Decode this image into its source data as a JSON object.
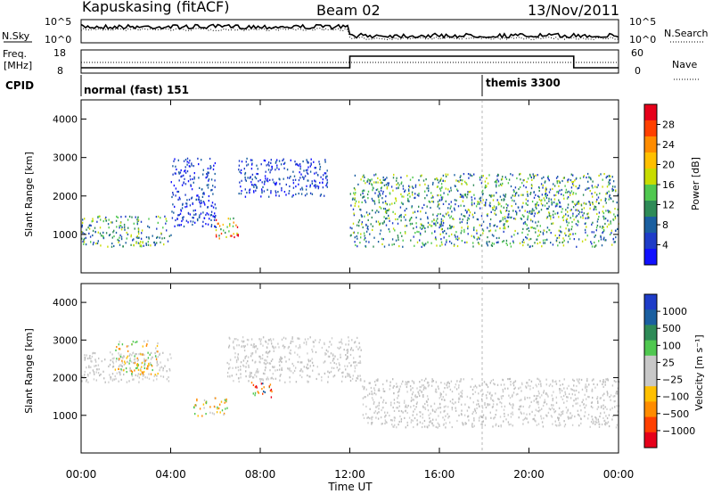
{
  "header": {
    "station": "Kapuskasing (fitACF)",
    "beam": "Beam 02",
    "date": "13/Nov/2011"
  },
  "noise_panel": {
    "left_label": "N.Sky",
    "right_label": "N.Search",
    "ticks": [
      "10^5",
      "10^0"
    ]
  },
  "freq_panel": {
    "left_label_line1": "Freq.",
    "left_label_line2": "[MHz]",
    "left_ticks": [
      "18",
      "8"
    ],
    "right_label": "Nave",
    "right_ticks": [
      "60",
      "0"
    ]
  },
  "cpid": {
    "label": "CPID",
    "modes": [
      {
        "start": "00:00",
        "name": "normal (fast) 151"
      },
      {
        "start": "18:00",
        "name": "themis 3300"
      }
    ]
  },
  "chart_data": [
    {
      "type": "heatmap",
      "name": "power",
      "ylabel": "Slant Range [km]",
      "xlabel": "",
      "ylim": [
        0,
        4500
      ],
      "yticks": [
        1000,
        2000,
        3000,
        4000
      ],
      "colorbar": {
        "label": "Power [dB]",
        "ticks": [
          "28",
          "24",
          "20",
          "16",
          "12",
          "8",
          "4"
        ],
        "colors": [
          "#e6001a",
          "#ff4000",
          "#ff8c00",
          "#ffc000",
          "#c8dc00",
          "#50c850",
          "#2e8b57",
          "#1a5fa0",
          "#1e3cc8",
          "#1010ff"
        ]
      },
      "echo_regions": [
        {
          "t_start": "00:00",
          "t_end": "04:00",
          "range_min": 700,
          "range_max": 1500,
          "level": "medium"
        },
        {
          "t_start": "04:00",
          "t_end": "06:00",
          "range_min": 1200,
          "range_max": 3000,
          "level": "low"
        },
        {
          "t_start": "06:00",
          "t_end": "07:00",
          "range_min": 900,
          "range_max": 1500,
          "level": "high"
        },
        {
          "t_start": "07:00",
          "t_end": "11:00",
          "range_min": 2000,
          "range_max": 3000,
          "level": "low"
        },
        {
          "t_start": "12:00",
          "t_end": "24:00",
          "range_min": 700,
          "range_max": 2600,
          "level": "medium"
        }
      ]
    },
    {
      "type": "heatmap",
      "name": "velocity",
      "ylabel": "Slant Range [km]",
      "xlabel": "Time UT",
      "ylim": [
        0,
        4500
      ],
      "yticks": [
        1000,
        2000,
        3000,
        4000
      ],
      "xticks": [
        "00:00",
        "04:00",
        "08:00",
        "12:00",
        "16:00",
        "20:00",
        "00:00"
      ],
      "colorbar": {
        "label": "Velocity [m s⁻¹]",
        "ticks": [
          "1000",
          "500",
          "100",
          "25",
          "−25",
          "−100",
          "−500",
          "−1000"
        ],
        "colors": [
          "#1e3cc8",
          "#1a5fa0",
          "#2e8b57",
          "#50c850",
          "#c8c8c8",
          "#c8c8c8",
          "#ffc000",
          "#ff8c00",
          "#ff4000",
          "#e6001a"
        ]
      },
      "echo_regions": [
        {
          "t_start": "00:00",
          "t_end": "04:00",
          "range_min": 1900,
          "range_max": 2700,
          "velocity": "ground-scatter"
        },
        {
          "t_start": "01:30",
          "t_end": "03:30",
          "range_min": 2100,
          "range_max": 3000,
          "velocity": -300
        },
        {
          "t_start": "05:00",
          "t_end": "06:30",
          "range_min": 1000,
          "range_max": 1500,
          "velocity": -100
        },
        {
          "t_start": "07:30",
          "t_end": "08:30",
          "range_min": 1500,
          "range_max": 1900,
          "velocity": -800
        },
        {
          "t_start": "06:30",
          "t_end": "12:30",
          "range_min": 1900,
          "range_max": 3100,
          "velocity": "ground-scatter"
        },
        {
          "t_start": "12:30",
          "t_end": "24:00",
          "range_min": 700,
          "range_max": 2000,
          "velocity": "ground-scatter"
        }
      ]
    }
  ]
}
